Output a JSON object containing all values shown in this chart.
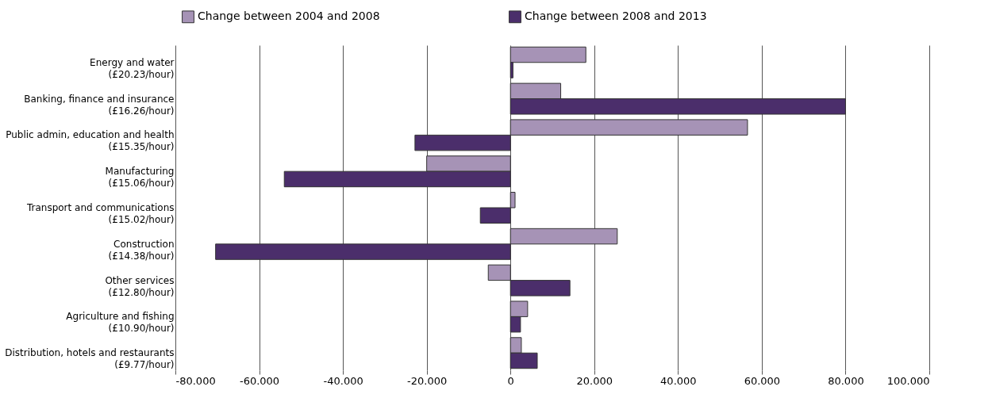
{
  "chart_data": {
    "type": "bar",
    "orientation": "horizontal",
    "categories": [
      "Energy and water\n(£20.23/hour)",
      "Banking, finance and insurance\n(£16.26/hour)",
      "Public admin, education and health\n(£15.35/hour)",
      "Manufacturing\n(£15.06/hour)",
      "Transport and communications\n(£15.02/hour)",
      "Construction\n(£14.38/hour)",
      "Other services\n(£12.80/hour)",
      "Agriculture and fishing\n(£10.90/hour)",
      "Distribution, hotels and restaurants\n(£9.77/hour)"
    ],
    "series": [
      {
        "name": "Change between 2004 and 2008",
        "color": "#a693b6",
        "values": [
          18.0,
          12.0,
          56.6,
          -20.0,
          1.1,
          25.5,
          -5.3,
          4.1,
          2.6
        ]
      },
      {
        "name": "Change between 2008 and 2013",
        "color": "#4b2e6b",
        "values": [
          0.6,
          80.0,
          -22.8,
          -54.0,
          -7.2,
          -70.4,
          14.2,
          2.4,
          6.4
        ]
      }
    ],
    "xlim": [
      -80,
      100
    ],
    "xticks": [
      {
        "value": -80,
        "label": "-80.000"
      },
      {
        "value": -60,
        "label": "-60.000"
      },
      {
        "value": -40,
        "label": "-40.000"
      },
      {
        "value": -20,
        "label": "-20.000"
      },
      0,
      {
        "value": 20,
        "label": "20.000"
      },
      {
        "value": 40,
        "label": "40.000"
      },
      {
        "value": 60,
        "label": "60.000"
      },
      {
        "value": 80,
        "label": "80.000"
      },
      {
        "value": 100,
        "label": "100.000"
      }
    ],
    "grid": "x",
    "legend": "top"
  }
}
